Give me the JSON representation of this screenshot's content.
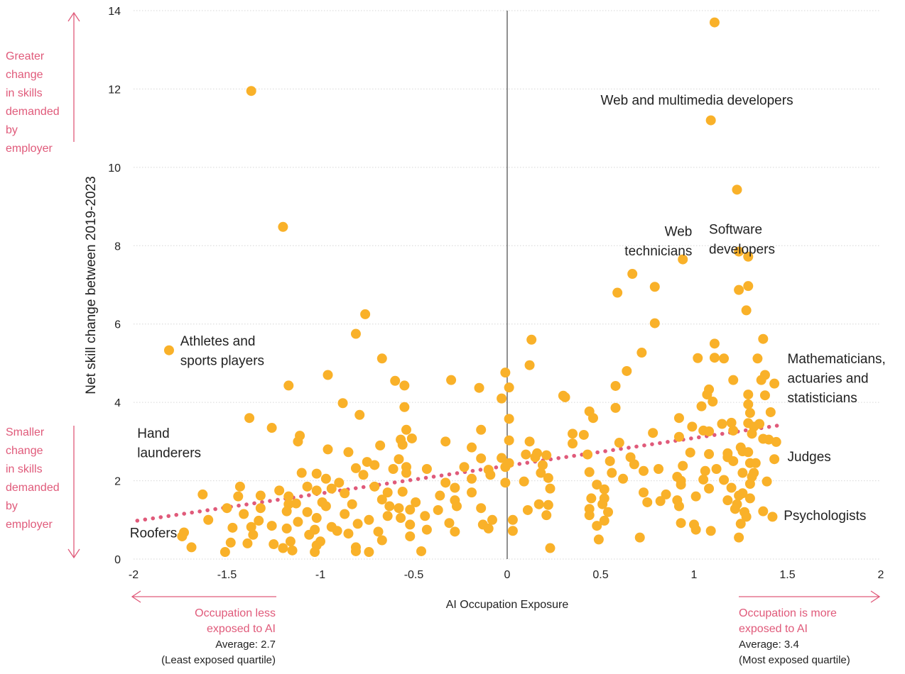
{
  "chart_data": {
    "type": "scatter",
    "title": "",
    "xlabel": "AI Occupation Exposure",
    "ylabel": "Net skill change between 2019-2023",
    "xlim": [
      -2,
      2
    ],
    "ylim": [
      0,
      14
    ],
    "xticks": [
      "-2",
      "-1.5",
      "-1",
      "-0.5",
      "0",
      "0.5",
      "1",
      "1.5",
      "2"
    ],
    "yticks": [
      "0",
      "2",
      "4",
      "6",
      "8",
      "10",
      "12",
      "14"
    ],
    "grid": "horizontal dotted",
    "trend_line": {
      "x": [
        -1.98,
        1.48
      ],
      "y": [
        0.98,
        3.43
      ],
      "style": "dotted",
      "color": "#e05a7a"
    },
    "colors": {
      "points": "#f9b129",
      "trend": "#e05a7a",
      "annotation": "#e05a7a",
      "axis": "#222222",
      "grid": "#d6d6d6"
    },
    "labels": [
      {
        "text": "Athletes and",
        "x": -1.75,
        "y": 5.45
      },
      {
        "text": "sports players",
        "x": -1.75,
        "y": 4.95
      },
      {
        "text": "Hand",
        "x": -1.98,
        "y": 3.1
      },
      {
        "text": "launderers",
        "x": -1.98,
        "y": 2.6
      },
      {
        "text": "Roofers",
        "x": -2.02,
        "y": 0.55
      },
      {
        "text": "Web and multimedia developers",
        "x": 0.5,
        "y": 11.6
      },
      {
        "text": "Web",
        "x": 0.99,
        "y": 8.25,
        "anchor": "end"
      },
      {
        "text": "technicians",
        "x": 0.99,
        "y": 7.75,
        "anchor": "end"
      },
      {
        "text": "Software",
        "x": 1.08,
        "y": 8.3
      },
      {
        "text": "developers",
        "x": 1.08,
        "y": 7.8
      },
      {
        "text": "Mathematicians,",
        "x": 1.5,
        "y": 5.0
      },
      {
        "text": "actuaries and",
        "x": 1.5,
        "y": 4.5
      },
      {
        "text": "statisticians",
        "x": 1.5,
        "y": 4.0
      },
      {
        "text": "Judges",
        "x": 1.5,
        "y": 2.5
      },
      {
        "text": "Psychologists",
        "x": 1.48,
        "y": 1.0
      }
    ],
    "side_notes": {
      "top": [
        "Greater",
        "change",
        "in skills",
        "demanded",
        "by",
        "employer"
      ],
      "bottom": [
        "Smaller",
        "change",
        "in skills",
        "demanded",
        "by",
        "employer"
      ]
    },
    "footnotes": {
      "left_pink": [
        "Occupation less",
        "exposed to AI"
      ],
      "left_black": [
        "Average: 2.7",
        "(Least exposed quartile)"
      ],
      "right_pink": [
        "Occupation is more",
        "exposed to AI"
      ],
      "right_black": [
        "Average: 3.4",
        "(Most exposed quartile)"
      ]
    },
    "points": [
      [
        1.11,
        13.7
      ],
      [
        -1.37,
        11.95
      ],
      [
        1.09,
        11.2
      ],
      [
        1.23,
        9.43
      ],
      [
        -1.2,
        8.48
      ],
      [
        0.94,
        7.65
      ],
      [
        1.24,
        7.85
      ],
      [
        1.29,
        7.72
      ],
      [
        0.67,
        7.28
      ],
      [
        1.29,
        6.97
      ],
      [
        1.24,
        6.87
      ],
      [
        0.79,
        6.95
      ],
      [
        0.59,
        6.8
      ],
      [
        1.28,
        6.35
      ],
      [
        -0.76,
        6.25
      ],
      [
        0.79,
        6.02
      ],
      [
        -0.81,
        5.75
      ],
      [
        0.13,
        5.6
      ],
      [
        1.37,
        5.62
      ],
      [
        1.11,
        5.5
      ],
      [
        -1.81,
        5.33
      ],
      [
        0.72,
        5.27
      ],
      [
        1.02,
        5.13
      ],
      [
        1.11,
        5.14
      ],
      [
        1.16,
        5.12
      ],
      [
        1.34,
        5.12
      ],
      [
        -0.67,
        5.12
      ],
      [
        0.12,
        4.95
      ],
      [
        0.64,
        4.8
      ],
      [
        -0.01,
        4.76
      ],
      [
        1.38,
        4.7
      ],
      [
        -0.96,
        4.7
      ],
      [
        1.36,
        4.57
      ],
      [
        -0.3,
        4.57
      ],
      [
        -0.6,
        4.55
      ],
      [
        1.21,
        4.57
      ],
      [
        1.43,
        4.48
      ],
      [
        -0.55,
        4.43
      ],
      [
        -1.17,
        4.43
      ],
      [
        0.58,
        4.42
      ],
      [
        0.01,
        4.38
      ],
      [
        -0.15,
        4.37
      ],
      [
        1.08,
        4.33
      ],
      [
        1.07,
        4.2
      ],
      [
        1.29,
        4.2
      ],
      [
        1.38,
        4.18
      ],
      [
        0.3,
        4.17
      ],
      [
        0.31,
        4.13
      ],
      [
        -0.03,
        4.1
      ],
      [
        -0.88,
        3.98
      ],
      [
        1.1,
        4.02
      ],
      [
        1.29,
        3.95
      ],
      [
        1.04,
        3.9
      ],
      [
        -0.55,
        3.88
      ],
      [
        0.58,
        3.86
      ],
      [
        1.41,
        3.75
      ],
      [
        0.44,
        3.77
      ],
      [
        1.3,
        3.73
      ],
      [
        -0.79,
        3.68
      ],
      [
        0.46,
        3.6
      ],
      [
        -1.38,
        3.6
      ],
      [
        0.92,
        3.6
      ],
      [
        0.01,
        3.58
      ],
      [
        1.2,
        3.48
      ],
      [
        1.29,
        3.47
      ],
      [
        1.35,
        3.45
      ],
      [
        1.15,
        3.45
      ],
      [
        1.32,
        3.38
      ],
      [
        -1.26,
        3.35
      ],
      [
        0.99,
        3.38
      ],
      [
        -0.54,
        3.3
      ],
      [
        -0.14,
        3.3
      ],
      [
        1.05,
        3.28
      ],
      [
        1.08,
        3.26
      ],
      [
        0.78,
        3.22
      ],
      [
        1.21,
        3.28
      ],
      [
        1.31,
        3.2
      ],
      [
        0.35,
        3.2
      ],
      [
        0.41,
        3.17
      ],
      [
        0.92,
        3.12
      ],
      [
        -1.11,
        3.15
      ],
      [
        -0.51,
        3.08
      ],
      [
        1.4,
        3.05
      ],
      [
        1.37,
        3.07
      ],
      [
        -0.57,
        3.05
      ],
      [
        0.01,
        3.03
      ],
      [
        0.12,
        3.0
      ],
      [
        -0.33,
        3.0
      ],
      [
        -1.12,
        3.0
      ],
      [
        1.44,
        2.99
      ],
      [
        -0.68,
        2.9
      ],
      [
        0.6,
        2.97
      ],
      [
        0.35,
        2.95
      ],
      [
        -0.56,
        2.92
      ],
      [
        1.25,
        2.85
      ],
      [
        -0.96,
        2.8
      ],
      [
        -0.19,
        2.85
      ],
      [
        -0.85,
        2.73
      ],
      [
        1.26,
        2.75
      ],
      [
        1.29,
        2.73
      ],
      [
        1.18,
        2.7
      ],
      [
        0.98,
        2.72
      ],
      [
        0.1,
        2.67
      ],
      [
        0.16,
        2.7
      ],
      [
        0.21,
        2.65
      ],
      [
        -0.14,
        2.57
      ],
      [
        0.43,
        2.67
      ],
      [
        1.08,
        2.68
      ],
      [
        1.18,
        2.6
      ],
      [
        0.66,
        2.6
      ],
      [
        -0.03,
        2.58
      ],
      [
        0.15,
        2.6
      ],
      [
        1.43,
        2.55
      ],
      [
        -0.58,
        2.55
      ],
      [
        0.55,
        2.5
      ],
      [
        -0.54,
        2.35
      ],
      [
        1.21,
        2.5
      ],
      [
        -0.75,
        2.48
      ],
      [
        0.01,
        2.45
      ],
      [
        1.3,
        2.45
      ],
      [
        1.33,
        2.45
      ],
      [
        -0.71,
        2.4
      ],
      [
        0.94,
        2.38
      ],
      [
        -0.81,
        2.32
      ],
      [
        0.19,
        2.4
      ],
      [
        -0.23,
        2.35
      ],
      [
        0.68,
        2.42
      ],
      [
        -0.61,
        2.3
      ],
      [
        -0.01,
        2.35
      ],
      [
        -0.1,
        2.28
      ],
      [
        -0.43,
        2.3
      ],
      [
        0.81,
        2.3
      ],
      [
        -1.1,
        2.2
      ],
      [
        1.12,
        2.3
      ],
      [
        0.73,
        2.25
      ],
      [
        -0.54,
        2.2
      ],
      [
        -0.09,
        2.15
      ],
      [
        0.18,
        2.2
      ],
      [
        1.06,
        2.25
      ],
      [
        1.32,
        2.2
      ],
      [
        -1.02,
        2.18
      ],
      [
        0.56,
        2.2
      ],
      [
        0.44,
        2.22
      ],
      [
        1.26,
        2.2
      ],
      [
        -0.77,
        2.15
      ],
      [
        -0.97,
        2.05
      ],
      [
        0.22,
        2.07
      ],
      [
        1.31,
        2.1
      ],
      [
        -0.19,
        2.05
      ],
      [
        0.91,
        2.1
      ],
      [
        0.93,
        2.0
      ],
      [
        1.16,
        2.02
      ],
      [
        0.62,
        2.05
      ],
      [
        0.09,
        1.98
      ],
      [
        1.05,
        2.03
      ],
      [
        1.39,
        1.98
      ],
      [
        -0.33,
        1.95
      ],
      [
        -0.9,
        1.95
      ],
      [
        -0.01,
        1.95
      ],
      [
        0.48,
        1.9
      ],
      [
        0.93,
        1.9
      ],
      [
        1.3,
        1.92
      ],
      [
        -1.07,
        1.85
      ],
      [
        -1.43,
        1.85
      ],
      [
        -0.71,
        1.85
      ],
      [
        -0.28,
        1.82
      ],
      [
        0.23,
        1.8
      ],
      [
        0.52,
        1.78
      ],
      [
        1.08,
        1.8
      ],
      [
        -0.94,
        1.8
      ],
      [
        -1.02,
        1.75
      ],
      [
        1.2,
        1.82
      ],
      [
        -0.56,
        1.72
      ],
      [
        -1.22,
        1.75
      ],
      [
        0.73,
        1.7
      ],
      [
        -0.64,
        1.7
      ],
      [
        -0.19,
        1.7
      ],
      [
        -0.87,
        1.68
      ],
      [
        1.26,
        1.68
      ],
      [
        0.85,
        1.65
      ],
      [
        1.24,
        1.62
      ],
      [
        -1.63,
        1.65
      ],
      [
        -1.32,
        1.62
      ],
      [
        -1.44,
        1.6
      ],
      [
        -0.36,
        1.62
      ],
      [
        0.45,
        1.55
      ],
      [
        1.01,
        1.6
      ],
      [
        -1.17,
        1.6
      ],
      [
        -0.28,
        1.5
      ],
      [
        -0.67,
        1.52
      ],
      [
        0.52,
        1.55
      ],
      [
        0.91,
        1.5
      ],
      [
        1.3,
        1.55
      ],
      [
        -0.99,
        1.45
      ],
      [
        -0.49,
        1.45
      ],
      [
        -1.13,
        1.42
      ],
      [
        0.75,
        1.45
      ],
      [
        0.82,
        1.48
      ],
      [
        1.18,
        1.5
      ],
      [
        -0.83,
        1.4
      ],
      [
        0.17,
        1.4
      ],
      [
        0.51,
        1.4
      ],
      [
        -1.17,
        1.4
      ],
      [
        1.23,
        1.4
      ],
      [
        -0.27,
        1.35
      ],
      [
        0.22,
        1.38
      ],
      [
        0.92,
        1.35
      ],
      [
        -0.97,
        1.35
      ],
      [
        -0.63,
        1.35
      ],
      [
        -1.32,
        1.3
      ],
      [
        -1.5,
        1.3
      ],
      [
        0.44,
        1.28
      ],
      [
        1.22,
        1.28
      ],
      [
        -0.58,
        1.3
      ],
      [
        -0.14,
        1.3
      ],
      [
        -0.52,
        1.26
      ],
      [
        -1.07,
        1.2
      ],
      [
        -0.37,
        1.25
      ],
      [
        -1.18,
        1.22
      ],
      [
        0.11,
        1.25
      ],
      [
        0.54,
        1.2
      ],
      [
        1.27,
        1.2
      ],
      [
        1.37,
        1.22
      ],
      [
        -0.87,
        1.15
      ],
      [
        -1.41,
        1.15
      ],
      [
        -0.64,
        1.1
      ],
      [
        -0.44,
        1.1
      ],
      [
        0.44,
        1.12
      ],
      [
        0.21,
        1.12
      ],
      [
        1.28,
        1.08
      ],
      [
        1.42,
        1.08
      ],
      [
        -1.02,
        1.05
      ],
      [
        -0.57,
        1.05
      ],
      [
        -0.08,
        1.0
      ],
      [
        -0.74,
        1.0
      ],
      [
        0.03,
        1.0
      ],
      [
        0.52,
        0.98
      ],
      [
        -1.6,
        1.0
      ],
      [
        -1.33,
        0.98
      ],
      [
        -1.12,
        0.95
      ],
      [
        -0.31,
        0.92
      ],
      [
        0.93,
        0.92
      ],
      [
        1.25,
        0.9
      ],
      [
        -0.8,
        0.9
      ],
      [
        -0.52,
        0.88
      ],
      [
        -0.13,
        0.88
      ],
      [
        -1.26,
        0.85
      ],
      [
        -1.37,
        0.82
      ],
      [
        0.48,
        0.85
      ],
      [
        -0.94,
        0.82
      ],
      [
        1.0,
        0.88
      ],
      [
        -1.47,
        0.8
      ],
      [
        -1.18,
        0.78
      ],
      [
        -0.1,
        0.78
      ],
      [
        -1.03,
        0.75
      ],
      [
        -0.43,
        0.75
      ],
      [
        -0.91,
        0.72
      ],
      [
        -0.69,
        0.7
      ],
      [
        0.03,
        0.72
      ],
      [
        1.01,
        0.75
      ],
      [
        1.09,
        0.72
      ],
      [
        -0.28,
        0.7
      ],
      [
        -1.73,
        0.68
      ],
      [
        -0.85,
        0.65
      ],
      [
        -1.36,
        0.62
      ],
      [
        -1.06,
        0.62
      ],
      [
        -1.74,
        0.58
      ],
      [
        -0.52,
        0.58
      ],
      [
        0.71,
        0.55
      ],
      [
        1.24,
        0.55
      ],
      [
        -0.67,
        0.48
      ],
      [
        0.49,
        0.5
      ],
      [
        -1.0,
        0.45
      ],
      [
        -1.16,
        0.45
      ],
      [
        -1.48,
        0.42
      ],
      [
        -1.39,
        0.4
      ],
      [
        -1.25,
        0.38
      ],
      [
        -1.02,
        0.35
      ],
      [
        -0.81,
        0.3
      ],
      [
        -1.69,
        0.3
      ],
      [
        -1.2,
        0.28
      ],
      [
        -0.81,
        0.2
      ],
      [
        -0.46,
        0.2
      ],
      [
        -1.15,
        0.22
      ],
      [
        -0.74,
        0.18
      ],
      [
        -1.03,
        0.18
      ],
      [
        -1.51,
        0.18
      ],
      [
        0.23,
        0.28
      ]
    ]
  }
}
